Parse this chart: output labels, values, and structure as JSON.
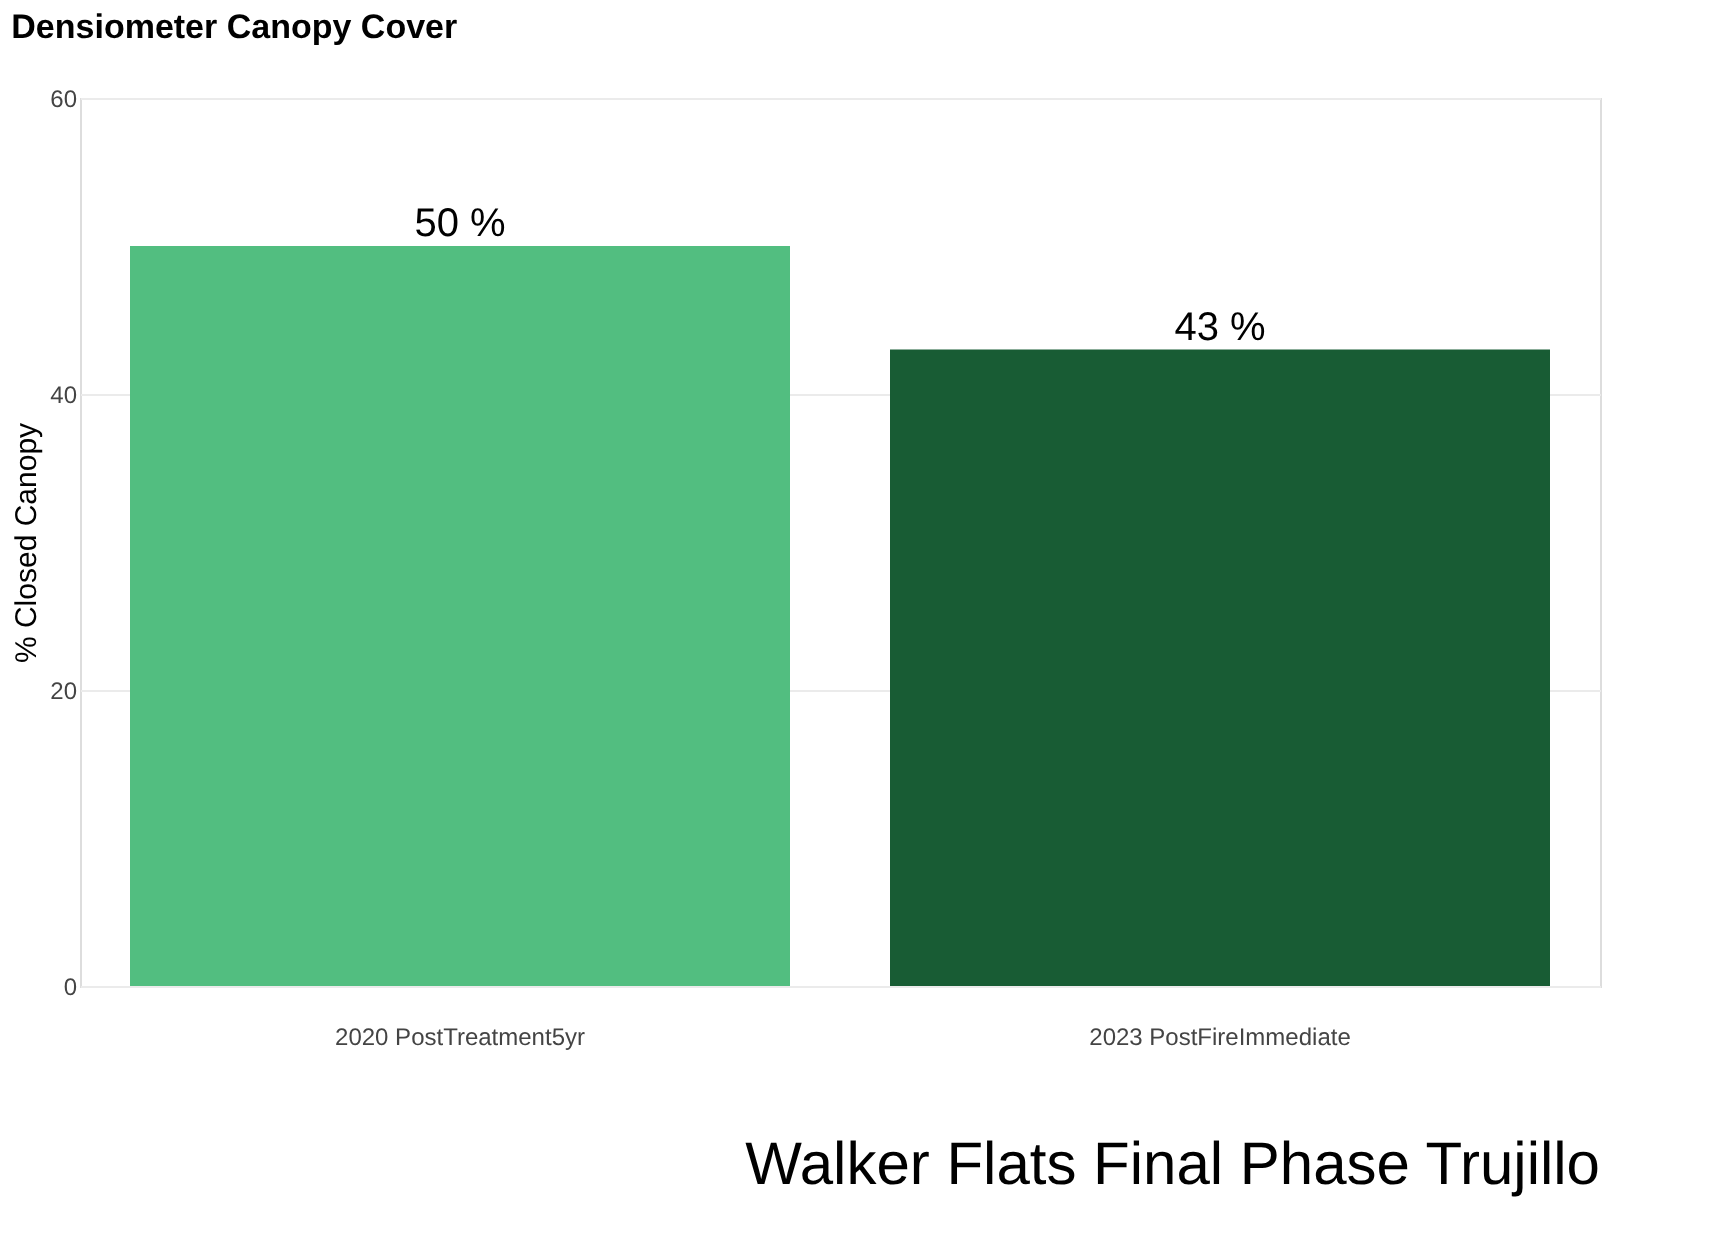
{
  "chart_data": {
    "type": "bar",
    "title": "Densiometer Canopy Cover",
    "ylabel": "% Closed Canopy",
    "categories": [
      "2020 PostTreatment5yr",
      "2023 PostFireImmediate"
    ],
    "values": [
      50,
      43
    ],
    "colors": [
      "#52be80",
      "#185c34"
    ],
    "value_labels": [
      "50 %",
      "43 %"
    ],
    "ylim": [
      0,
      60
    ],
    "yticks": [
      0,
      20,
      40,
      60
    ],
    "grid": "y",
    "legend": false,
    "annotations": [
      "Walker Flats Final Phase Trujillo"
    ]
  }
}
